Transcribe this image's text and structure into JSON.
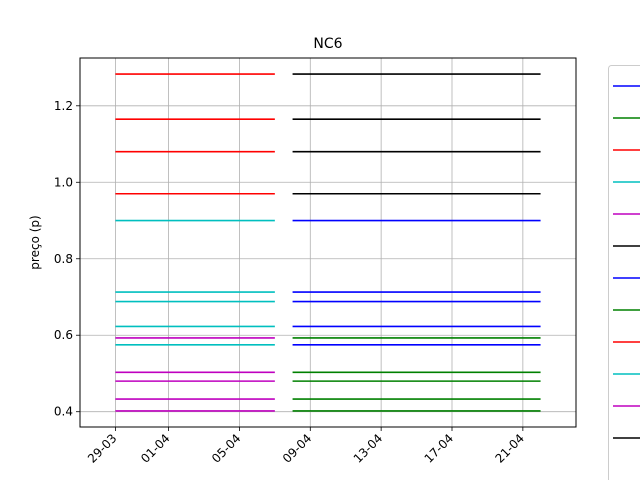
{
  "chart_data": {
    "type": "line",
    "title": "NC6",
    "xlabel": "",
    "ylabel": "preço (p)",
    "grid": true,
    "legend": "right, clipped",
    "x_ticks": [
      "29-03",
      "01-04",
      "05-04",
      "09-04",
      "13-04",
      "17-04",
      "21-04"
    ],
    "x_range": [
      "2021-03-27",
      "2021-04-24"
    ],
    "y_ticks": [
      "0.4",
      "0.6",
      "0.8",
      "1.0",
      "1.2"
    ],
    "ylim": [
      0.36,
      1.325
    ],
    "segments": [
      {
        "start": "2021-03-29",
        "end": "2021-04-07",
        "series": [
          {
            "color": "#ff0000",
            "values": [
              0.97,
              1.08,
              1.165,
              1.283
            ]
          },
          {
            "color": "#00bfbf",
            "values": [
              0.575,
              0.623,
              0.688,
              0.713,
              0.9
            ]
          },
          {
            "color": "#bf00bf",
            "values": [
              0.402,
              0.433,
              0.48,
              0.503,
              0.593
            ]
          }
        ]
      },
      {
        "start": "2021-04-08",
        "end": "2021-04-22",
        "series": [
          {
            "color": "#000000",
            "values": [
              0.97,
              1.08,
              1.165,
              1.283
            ]
          },
          {
            "color": "#0000ff",
            "values": [
              0.575,
              0.623,
              0.688,
              0.713,
              0.9
            ]
          },
          {
            "color": "#008000",
            "values": [
              0.402,
              0.433,
              0.48,
              0.503,
              0.593
            ]
          }
        ]
      }
    ],
    "legend_colors": [
      "#0000ff",
      "#008000",
      "#ff0000",
      "#00bfbf",
      "#bf00bf",
      "#000000",
      "#0000ff",
      "#008000",
      "#ff0000",
      "#00bfbf",
      "#bf00bf",
      "#000000"
    ]
  }
}
